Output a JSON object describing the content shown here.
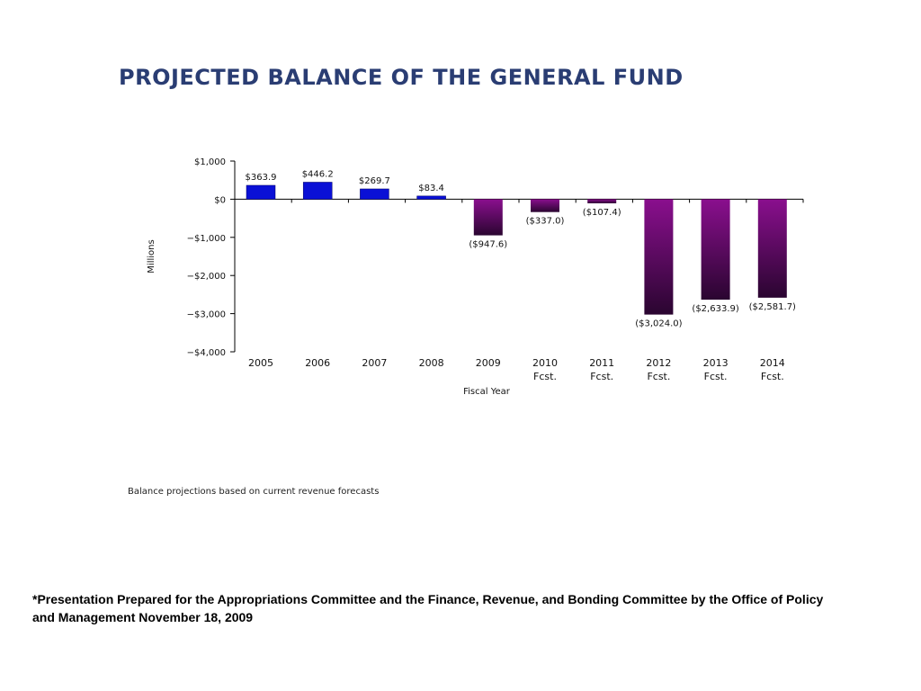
{
  "title": "PROJECTED BALANCE OF THE GENERAL FUND",
  "note": "Balance projections based on current revenue forecasts",
  "footnote": "*Presentation Prepared for the Appropriations Committee and the Finance, Revenue, and Bonding  Committee by the Office of Policy and Management November 18, 2009",
  "colors": {
    "positive": "#0a10d6",
    "negative_top": "#8a0f8e",
    "negative_bottom": "#2a0530",
    "axis": "#000000",
    "title": "#2a3d73"
  },
  "chart_data": {
    "type": "bar",
    "categories": [
      [
        "2005"
      ],
      [
        "2006"
      ],
      [
        "2007"
      ],
      [
        "2008"
      ],
      [
        "2009"
      ],
      [
        "2010",
        "Fcst."
      ],
      [
        "2011",
        "Fcst."
      ],
      [
        "2012",
        "Fcst."
      ],
      [
        "2013",
        "Fcst."
      ],
      [
        "2014",
        "Fcst."
      ]
    ],
    "values": [
      363.9,
      446.2,
      269.7,
      83.4,
      -947.6,
      -337.0,
      -107.4,
      -3024.0,
      -2633.9,
      -2581.7
    ],
    "data_labels": [
      "$363.9",
      "$446.2",
      "$269.7",
      "$83.4",
      "($947.6)",
      "($337.0)",
      "($107.4)",
      "($3,024.0)",
      "($2,633.9)",
      "($2,581.7)"
    ],
    "xlabel": "Fiscal Year",
    "ylabel": "Millions",
    "ylim": [
      -4000,
      1000
    ],
    "yticks": [
      1000,
      0,
      -1000,
      -2000,
      -3000,
      -4000
    ],
    "ytick_labels": [
      "$1,000",
      "$0",
      "−$1,000",
      "−$2,000",
      "−$3,000",
      "−$4,000"
    ],
    "grid": false,
    "legend": "none"
  }
}
